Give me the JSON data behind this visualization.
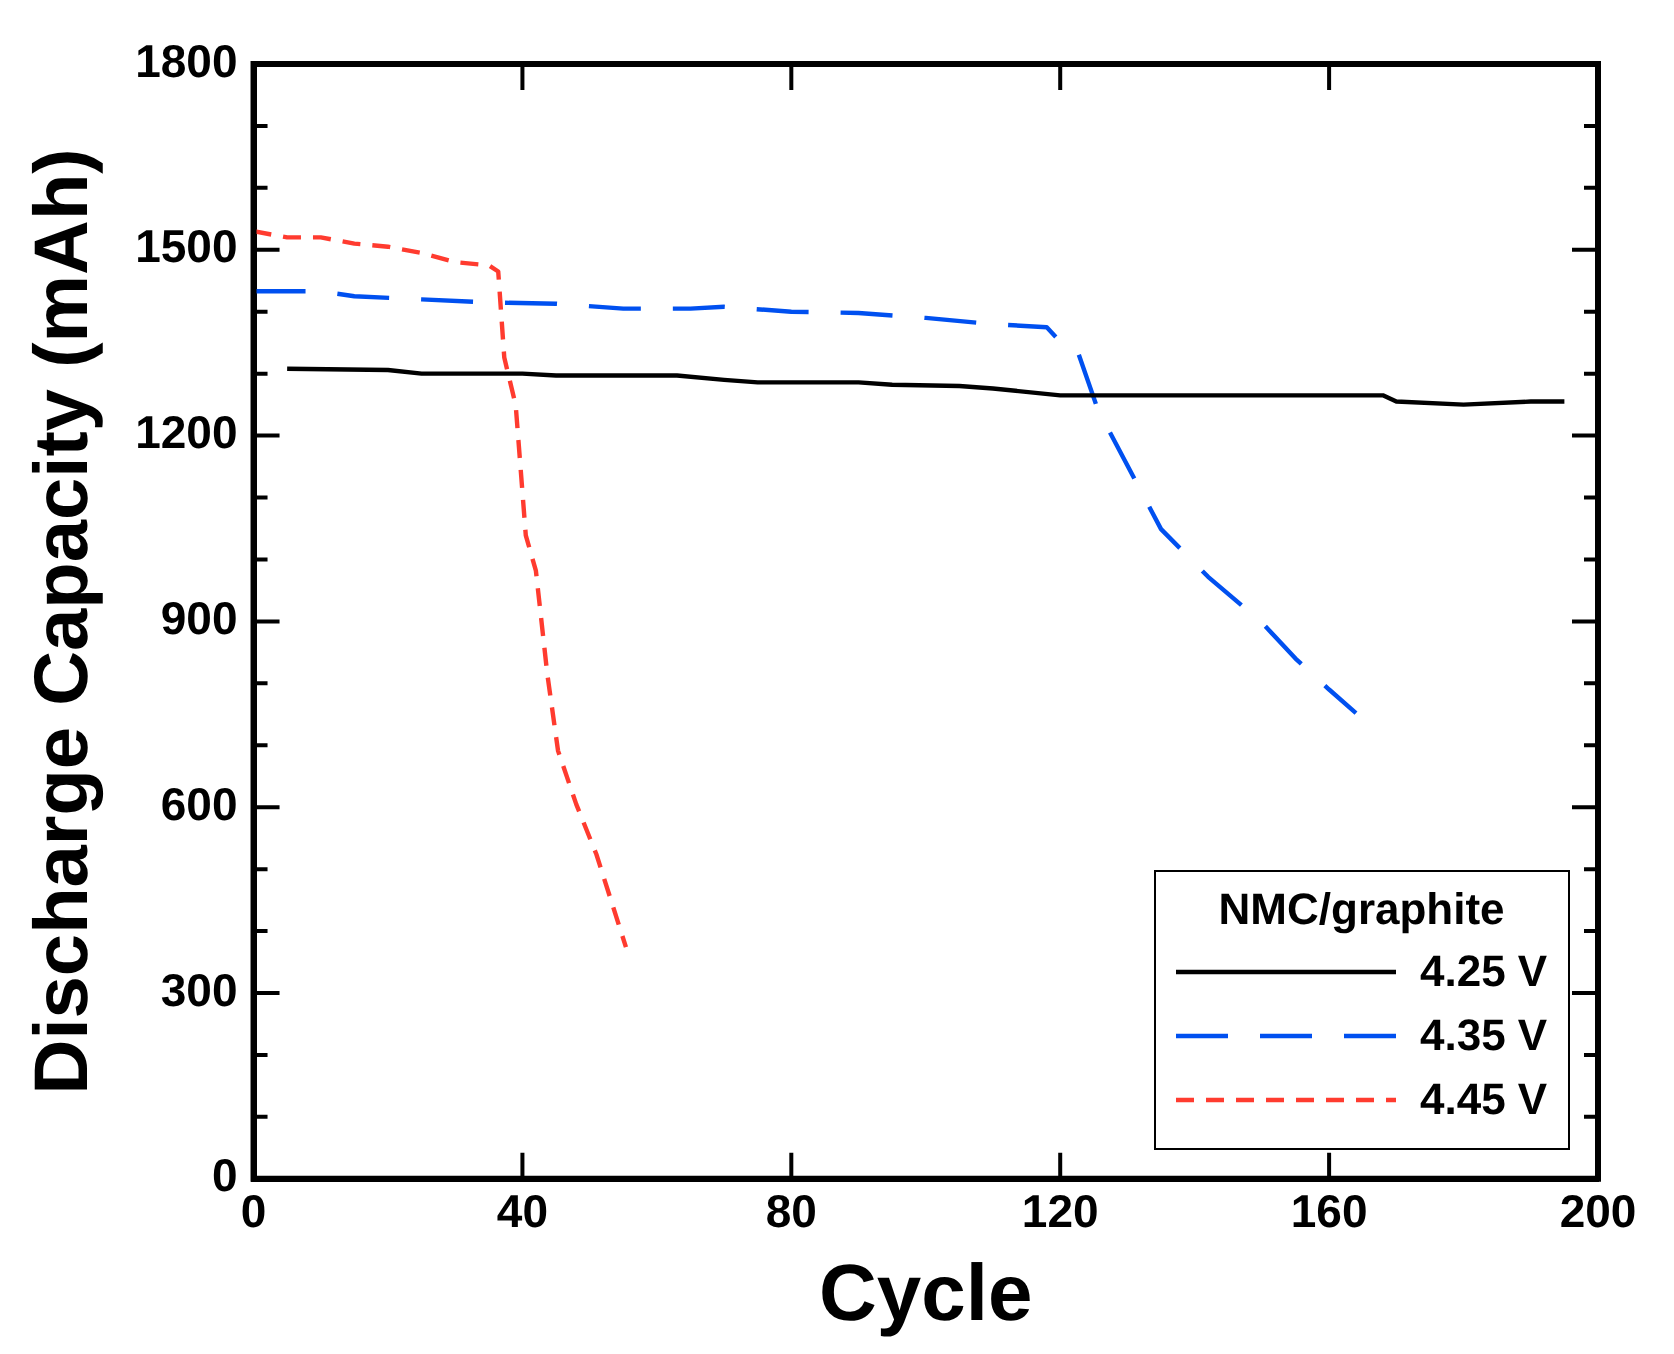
{
  "chart_data": {
    "type": "line",
    "xlabel": "Cycle",
    "ylabel": "Discharge Capacity (mAh)",
    "legend_title": "NMC/graphite",
    "legend": "bottom right",
    "grid": false,
    "marker": "none",
    "xlim": [
      0,
      200
    ],
    "xticks": [
      0,
      40,
      80,
      120,
      160,
      200
    ],
    "ylim": [
      0,
      1800
    ],
    "yticks": [
      0,
      {
        "value": 100,
        "label": null
      },
      {
        "value": 200,
        "label": null
      },
      300,
      {
        "value": 400,
        "label": null
      },
      {
        "value": 500,
        "label": null
      },
      600,
      {
        "value": 700,
        "label": null
      },
      {
        "value": 800,
        "label": null
      },
      900,
      {
        "value": 1000,
        "label": null
      },
      {
        "value": 1100,
        "label": null
      },
      1200,
      {
        "value": 1300,
        "label": null
      },
      {
        "value": 1400,
        "label": null
      },
      1500,
      {
        "value": 1600,
        "label": null
      },
      {
        "value": 1700,
        "label": null
      },
      1800
    ],
    "series": [
      {
        "name": "4.25 V",
        "color": "#000000",
        "line_style": "solid",
        "x": [
          5,
          20,
          25,
          40,
          45,
          60,
          63,
          70,
          75,
          90,
          95,
          105,
          110,
          120,
          160,
          168,
          170,
          180,
          190,
          195
        ],
        "values": [
          1308,
          1306,
          1300,
          1300,
          1297,
          1297,
          1297,
          1290,
          1286,
          1286,
          1282,
          1280,
          1276,
          1265,
          1265,
          1265,
          1255,
          1250,
          1255,
          1255
        ]
      },
      {
        "name": "4.35 V",
        "color": "#0050f0",
        "line_style": "dashed",
        "x": [
          0,
          10,
          15,
          25,
          35,
          45,
          55,
          65,
          70,
          80,
          90,
          100,
          110,
          118,
          121,
          122.5,
          125.6,
          135,
          142,
          150,
          155,
          160,
          164
        ],
        "values": [
          1433,
          1433,
          1425,
          1420,
          1415,
          1413,
          1405,
          1405,
          1408,
          1400,
          1398,
          1390,
          1380,
          1375,
          1340,
          1339,
          1242,
          1049,
          972,
          898,
          840,
          790,
          752
        ]
      },
      {
        "name": "4.45 V",
        "color": "#ff3b2f",
        "line_style": "dashed",
        "x": [
          0,
          5,
          10,
          15,
          20,
          25,
          30,
          35,
          36.4,
          37.3,
          39,
          40.5,
          42,
          43.7,
          45.3,
          48,
          51,
          55.4
        ],
        "values": [
          1530,
          1520,
          1520,
          1510,
          1505,
          1495,
          1480,
          1475,
          1465,
          1326,
          1249,
          1039,
          982,
          815,
          691,
          605,
          524,
          374
        ]
      }
    ]
  }
}
